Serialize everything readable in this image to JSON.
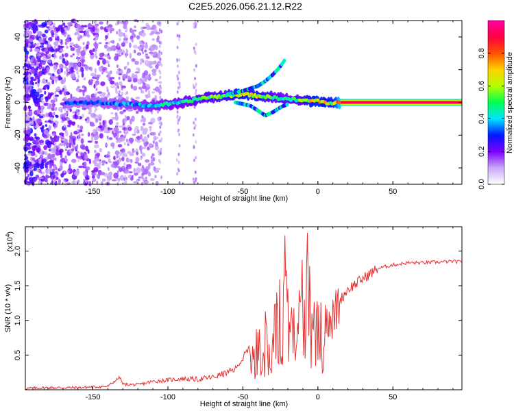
{
  "figure": {
    "title": "C2E5.2026.056.21.12.R22"
  },
  "chart_data": [
    {
      "type": "heatmap",
      "xlabel": "Height of straight line (km)",
      "ylabel": "Frequency (Hz)",
      "xlim": [
        -195,
        96
      ],
      "ylim": [
        -50,
        50
      ],
      "x_ticks": [
        -150,
        -100,
        -50,
        0,
        50
      ],
      "y_ticks": [
        -40,
        -20,
        0,
        20,
        40
      ],
      "grid": false,
      "colorbar": {
        "label": "Normalized spectral amplitude",
        "range": [
          0,
          1
        ],
        "ticks": [
          "0.0",
          "0.2",
          "0.4",
          "0.6",
          "0.8"
        ],
        "colors": [
          "#ffffff",
          "#c9a8f7",
          "#7b00ff",
          "#0018ff",
          "#00e5ff",
          "#00ff50",
          "#b5ff00",
          "#ffd000",
          "#ff5000",
          "#ff0040",
          "#ff00a0"
        ]
      },
      "ridge": {
        "description_points_x": [
          -165,
          -150,
          -130,
          -110,
          -90,
          -75,
          -60,
          -50,
          -40,
          -30,
          -20,
          -10,
          0,
          10,
          15,
          30,
          60,
          96
        ],
        "frequency_hz": [
          0,
          0,
          -1,
          -2,
          0,
          3,
          4,
          5,
          4,
          3,
          2,
          1,
          1,
          -1,
          0,
          0,
          0,
          0
        ],
        "amplitude": [
          0.3,
          0.3,
          0.35,
          0.4,
          0.45,
          0.5,
          0.55,
          0.65,
          0.6,
          0.5,
          0.45,
          0.55,
          0.7,
          0.6,
          0.9,
          0.95,
          0.95,
          0.95
        ]
      },
      "upper_branch": {
        "x": [
          -60,
          -50,
          -40,
          -35,
          -30,
          -25,
          -22
        ],
        "frequency_hz": [
          5,
          7,
          10,
          13,
          17,
          22,
          26
        ]
      },
      "lower_branch": {
        "x": [
          -55,
          -45,
          -40,
          -35,
          -30,
          -25,
          -20
        ],
        "frequency_hz": [
          0,
          -2,
          -5,
          -8,
          -6,
          -3,
          -1
        ]
      }
    },
    {
      "type": "line",
      "xlabel": "Height of straight line (km)",
      "ylabel": "SNR (10 * v/v)",
      "multiplier_label": "(x10",
      "multiplier_exp": "4",
      "xlim": [
        -195,
        96
      ],
      "ylim": [
        0,
        2.35
      ],
      "x_ticks": [
        -150,
        -100,
        -50,
        0,
        50
      ],
      "y_ticks": [
        0.5,
        1.0,
        1.5,
        2.0
      ],
      "y_tick_labels": [
        "0.5",
        "1.0",
        "1.5",
        "2.0"
      ],
      "series": [
        {
          "color": "#e83030",
          "x": [
            -195,
            -180,
            -160,
            -140,
            -132,
            -130,
            -120,
            -110,
            -100,
            -90,
            -80,
            -70,
            -60,
            -55,
            -50,
            -45,
            -40,
            -35,
            -30,
            -25,
            -22,
            -20,
            -15,
            -10,
            -8,
            -5,
            0,
            5,
            10,
            15,
            20,
            30,
            40,
            50,
            60,
            70,
            80,
            90,
            96
          ],
          "y": [
            0.02,
            0.03,
            0.03,
            0.05,
            0.18,
            0.08,
            0.07,
            0.12,
            0.14,
            0.16,
            0.15,
            0.18,
            0.25,
            0.3,
            0.45,
            0.6,
            0.75,
            0.9,
            1.1,
            1.3,
            1.9,
            1.2,
            1.3,
            1.6,
            2.2,
            1.5,
            1.05,
            1.15,
            1.0,
            1.3,
            1.45,
            1.6,
            1.75,
            1.8,
            1.83,
            1.83,
            1.84,
            1.85,
            1.84
          ]
        }
      ]
    }
  ]
}
